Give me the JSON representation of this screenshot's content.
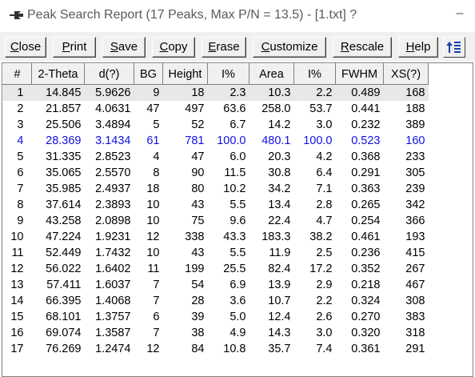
{
  "window": {
    "title": "Peak Search Report (17 Peaks, Max P/N = 13.5) - [1.txt] ?",
    "minimize_label": "–"
  },
  "toolbar": {
    "close": {
      "u": "C",
      "rest": "lose"
    },
    "print": {
      "u": "P",
      "rest": "rint"
    },
    "save": {
      "u": "S",
      "rest": "ave"
    },
    "copy": {
      "u": "C",
      "rest": "opy"
    },
    "erase": {
      "u": "E",
      "rest": "rase"
    },
    "customize": {
      "u": "C",
      "rest": "ustomize"
    },
    "rescale": {
      "u": "R",
      "rest": "escale"
    },
    "help": {
      "u": "H",
      "rest": "elp"
    },
    "sort_icon": "sort-toggle-icon"
  },
  "table": {
    "headers": [
      "#",
      "2-Theta",
      "d(?)",
      "BG",
      "Height",
      "I%",
      "Area",
      "I%",
      "FWHM",
      "XS(?)"
    ],
    "rows": [
      [
        "1",
        "14.845",
        "5.9626",
        "9",
        "18",
        "2.3",
        "10.3",
        "2.2",
        "0.489",
        "168"
      ],
      [
        "2",
        "21.857",
        "4.0631",
        "47",
        "497",
        "63.6",
        "258.0",
        "53.7",
        "0.441",
        "188"
      ],
      [
        "3",
        "25.506",
        "3.4894",
        "5",
        "52",
        "6.7",
        "14.2",
        "3.0",
        "0.232",
        "389"
      ],
      [
        "4",
        "28.369",
        "3.1434",
        "61",
        "781",
        "100.0",
        "480.1",
        "100.0",
        "0.523",
        "160"
      ],
      [
        "5",
        "31.335",
        "2.8523",
        "4",
        "47",
        "6.0",
        "20.3",
        "4.2",
        "0.368",
        "233"
      ],
      [
        "6",
        "35.065",
        "2.5570",
        "8",
        "90",
        "11.5",
        "30.8",
        "6.4",
        "0.291",
        "305"
      ],
      [
        "7",
        "35.985",
        "2.4937",
        "18",
        "80",
        "10.2",
        "34.2",
        "7.1",
        "0.363",
        "239"
      ],
      [
        "8",
        "37.614",
        "2.3893",
        "10",
        "43",
        "5.5",
        "13.4",
        "2.8",
        "0.265",
        "342"
      ],
      [
        "9",
        "43.258",
        "2.0898",
        "10",
        "75",
        "9.6",
        "22.4",
        "4.7",
        "0.254",
        "366"
      ],
      [
        "10",
        "47.224",
        "1.9231",
        "12",
        "338",
        "43.3",
        "183.3",
        "38.2",
        "0.461",
        "193"
      ],
      [
        "11",
        "52.449",
        "1.7432",
        "10",
        "43",
        "5.5",
        "11.9",
        "2.5",
        "0.236",
        "415"
      ],
      [
        "12",
        "56.022",
        "1.6402",
        "11",
        "199",
        "25.5",
        "82.4",
        "17.2",
        "0.352",
        "267"
      ],
      [
        "13",
        "57.411",
        "1.6037",
        "7",
        "54",
        "6.9",
        "13.9",
        "2.9",
        "0.218",
        "467"
      ],
      [
        "14",
        "66.395",
        "1.4068",
        "7",
        "28",
        "3.6",
        "10.7",
        "2.2",
        "0.324",
        "308"
      ],
      [
        "15",
        "68.101",
        "1.3757",
        "6",
        "39",
        "5.0",
        "12.4",
        "2.6",
        "0.270",
        "383"
      ],
      [
        "16",
        "69.074",
        "1.3587",
        "7",
        "38",
        "4.9",
        "14.3",
        "3.0",
        "0.320",
        "318"
      ],
      [
        "17",
        "76.269",
        "1.2474",
        "12",
        "84",
        "10.8",
        "35.7",
        "7.4",
        "0.361",
        "291"
      ]
    ],
    "selected_row": 1,
    "highlight_row": 4,
    "highlight_color": "#1010e0"
  }
}
